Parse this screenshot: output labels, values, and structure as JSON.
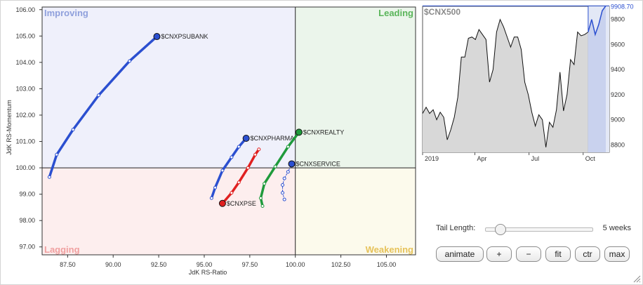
{
  "chart_data": [
    {
      "type": "scatter",
      "subtype": "relative-rotation-graph",
      "xlabel": "JdK RS-Ratio",
      "ylabel": "JdK RS-Momentum",
      "xlim": [
        86.1,
        106.6
      ],
      "ylim": [
        96.7,
        106.1
      ],
      "xticks": [
        87.5,
        90.0,
        92.5,
        95.0,
        97.5,
        100.0,
        102.5,
        105.0
      ],
      "xtick_labels": [
        "87.50",
        "90.00",
        "92.50",
        "95.00",
        "97.50",
        "100.00",
        "102.50",
        "105.00"
      ],
      "yticks": [
        97.0,
        98.0,
        99.0,
        100.0,
        101.0,
        102.0,
        103.0,
        104.0,
        105.0,
        106.0
      ],
      "ytick_labels": [
        "97.00",
        "98.00",
        "99.00",
        "100.00",
        "101.00",
        "102.00",
        "103.00",
        "104.00",
        "105.00",
        "106.00"
      ],
      "center": [
        100,
        100
      ],
      "quadrants": [
        {
          "name": "Improving",
          "location": "top-left",
          "label_color": "#8fa0dc",
          "fill": "#eff0fb"
        },
        {
          "name": "Leading",
          "location": "top-right",
          "label_color": "#5ab55a",
          "fill": "#ebf5eb"
        },
        {
          "name": "Lagging",
          "location": "bottom-left",
          "label_color": "#f0a0a0",
          "fill": "#fdeeee"
        },
        {
          "name": "Weakening",
          "location": "bottom-right",
          "label_color": "#e6c25a",
          "fill": "#fcfaec"
        }
      ],
      "series": [
        {
          "name": "$CNXPSUBANK",
          "color": "#2b4fd0",
          "line_style": "solid",
          "x": [
            86.5,
            86.9,
            87.8,
            89.2,
            90.9,
            92.4
          ],
          "y": [
            99.65,
            100.5,
            101.45,
            102.75,
            104.05,
            104.98
          ]
        },
        {
          "name": "$CNXPHARMA",
          "color": "#2b4fd0",
          "line_style": "solid",
          "x": [
            95.4,
            95.6,
            96.0,
            96.5,
            96.9,
            97.3
          ],
          "y": [
            98.85,
            99.25,
            99.9,
            100.4,
            100.8,
            101.12
          ]
        },
        {
          "name": "$CNXPSE",
          "color": "#e02020",
          "line_style": "solid",
          "x": [
            98.0,
            97.8,
            97.4,
            96.9,
            96.5,
            96.0
          ],
          "y": [
            100.7,
            100.5,
            100.0,
            99.45,
            99.05,
            98.65
          ]
        },
        {
          "name": "$CNXREALTY",
          "color": "#1f9a3c",
          "line_style": "solid",
          "x": [
            98.2,
            98.1,
            98.3,
            98.9,
            99.6,
            100.2
          ],
          "y": [
            98.55,
            98.85,
            99.4,
            100.05,
            100.8,
            101.35
          ]
        },
        {
          "name": "$CNXSERVICE",
          "color": "#2b4fd0",
          "line_style": "dotted",
          "x": [
            99.4,
            99.3,
            99.3,
            99.4,
            99.6,
            99.8
          ],
          "y": [
            98.8,
            99.05,
            99.35,
            99.6,
            99.85,
            100.15
          ]
        }
      ]
    },
    {
      "type": "line",
      "title": "$CNX500",
      "x_labels": [
        "2019",
        "Apr",
        "Jul",
        "Oct"
      ],
      "yticks": [
        8800,
        9000,
        9200,
        9400,
        9600,
        9800
      ],
      "ylim": [
        8740,
        9905
      ],
      "current_value_label": "9908.70",
      "line_color": "#111111",
      "fill_color": "#d8d8d8",
      "highlight_color": "#2b4fd0",
      "values": [
        9050,
        9100,
        9050,
        9080,
        9000,
        9060,
        9020,
        8840,
        8920,
        9020,
        9180,
        9500,
        9500,
        9650,
        9660,
        9640,
        9720,
        9680,
        9640,
        9300,
        9400,
        9700,
        9800,
        9740,
        9660,
        9580,
        9660,
        9660,
        9560,
        9300,
        9200,
        9060,
        8950,
        9040,
        9000,
        8780,
        8980,
        8940,
        9080,
        9380,
        9070,
        9200,
        9480,
        9440,
        9700,
        9670,
        9680,
        9700
      ],
      "highlight_values": [
        9700,
        9800,
        9680,
        9760,
        9870,
        9908.7
      ]
    }
  ],
  "controls": {
    "tail_length_label": "Tail Length:",
    "tail_length_value": "5 weeks",
    "tail_length_weeks": 5,
    "tail_length_fraction": 0.13,
    "buttons": [
      "animate",
      "+",
      "−",
      "fit",
      "ctr",
      "max"
    ]
  }
}
